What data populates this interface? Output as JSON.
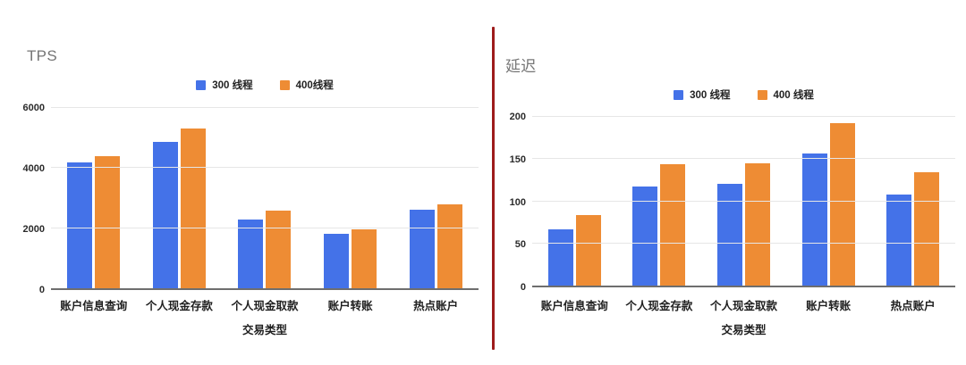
{
  "divider": {
    "color": "#9e1c1c"
  },
  "style_colors": {
    "series_blue": "#4472e8",
    "series_orange": "#ee8c34",
    "gridline": "#e6e6e6",
    "axis_baseline": "#6e6e6e",
    "title_gray": "#757575"
  },
  "chart_data": [
    {
      "type": "bar",
      "title": "TPS",
      "xlabel": "交易类型",
      "ylabel": "",
      "legend_position": "top-center",
      "grid": true,
      "categories": [
        "账户信息查询",
        "个人现金存款",
        "个人现金取款",
        "账户转账",
        "热点账户"
      ],
      "series": [
        {
          "name": "300 线程",
          "color": "#4472e8",
          "values": [
            4200,
            4870,
            2300,
            1820,
            2620
          ]
        },
        {
          "name": "400线程",
          "color": "#ee8c34",
          "values": [
            4400,
            5320,
            2580,
            1950,
            2780
          ]
        }
      ],
      "ylim": [
        0,
        6000
      ],
      "yticks": [
        0,
        2000,
        4000,
        6000
      ]
    },
    {
      "type": "bar",
      "title": "延迟",
      "xlabel": "交易类型",
      "ylabel": "",
      "legend_position": "top-center",
      "grid": true,
      "categories": [
        "账户信息查询",
        "个人现金存款",
        "个人现金取款",
        "账户转账",
        "热点账户"
      ],
      "series": [
        {
          "name": "300 线程",
          "color": "#4472e8",
          "values": [
            67,
            117,
            121,
            157,
            108
          ]
        },
        {
          "name": "400 线程",
          "color": "#ee8c34",
          "values": [
            84,
            144,
            145,
            193,
            134
          ]
        }
      ],
      "ylim": [
        0,
        200
      ],
      "yticks": [
        0,
        50,
        100,
        150,
        200
      ]
    }
  ]
}
